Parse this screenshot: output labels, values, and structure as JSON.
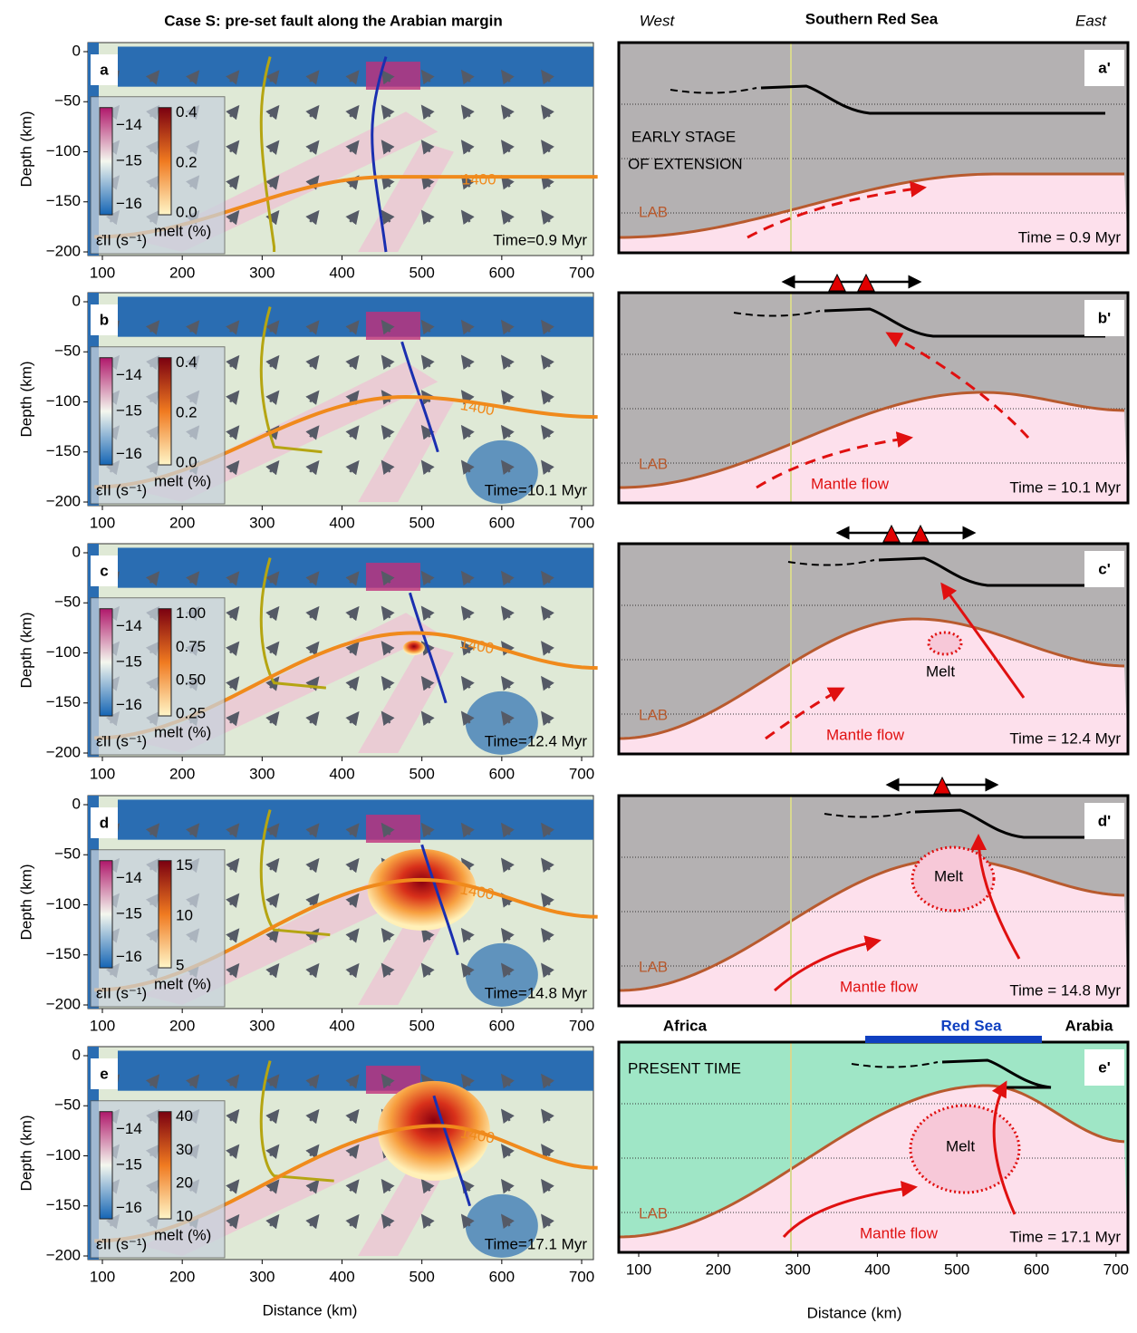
{
  "left_title": "Case S: pre-set fault along the Arabian margin",
  "right_header": {
    "west": "West",
    "title": "Southern Red Sea",
    "east": "East"
  },
  "axes": {
    "depth_label": "Depth (km)",
    "distance_label": "Distance (km)",
    "depth_ticks": [
      "0",
      "−50",
      "−100",
      "−150",
      "−200"
    ],
    "distance_ticks": [
      "100",
      "200",
      "300",
      "400",
      "500",
      "600",
      "700"
    ],
    "strain_ticks": [
      "−14",
      "−15",
      "−16"
    ],
    "strain_label": "ε̇II (s⁻¹)",
    "melt_label": "melt (%)",
    "isotherm": "1400"
  },
  "left_panels": [
    {
      "label": "a",
      "time": "Time=0.9 Myr",
      "melt_ticks": [
        "0.4",
        "0.2",
        "0.0"
      ]
    },
    {
      "label": "b",
      "time": "Time=10.1 Myr",
      "melt_ticks": [
        "0.4",
        "0.2",
        "0.0"
      ]
    },
    {
      "label": "c",
      "time": "Time=12.4 Myr",
      "melt_ticks": [
        "1.00",
        "0.75",
        "0.50",
        "0.25"
      ]
    },
    {
      "label": "d",
      "time": "Time=14.8 Myr",
      "melt_ticks": [
        "15",
        "10",
        "5"
      ]
    },
    {
      "label": "e",
      "time": "Time=17.1 Myr",
      "melt_ticks": [
        "40",
        "30",
        "20",
        "10"
      ]
    }
  ],
  "right_panels": [
    {
      "label": "a'",
      "time": "Time = 0.9 Myr",
      "lab": "LAB",
      "stage": [
        "EARLY STAGE",
        "OF EXTENSION"
      ]
    },
    {
      "label": "b'",
      "time": "Time = 10.1 Myr",
      "lab": "LAB",
      "flow": "Mantle flow"
    },
    {
      "label": "c'",
      "time": "Time = 12.4 Myr",
      "lab": "LAB",
      "flow": "Mantle flow",
      "melt": "Melt"
    },
    {
      "label": "d'",
      "time": "Time = 14.8 Myr",
      "lab": "LAB",
      "flow": "Mantle flow",
      "melt": "Melt"
    },
    {
      "label": "e'",
      "time": "Time = 17.1 Myr",
      "lab": "LAB",
      "flow": "Mantle flow",
      "melt": "Melt",
      "stage": [
        "PRESENT TIME"
      ]
    }
  ],
  "present_header": {
    "africa": "Africa",
    "red_sea": "Red Sea",
    "arabia": "Arabia"
  }
}
